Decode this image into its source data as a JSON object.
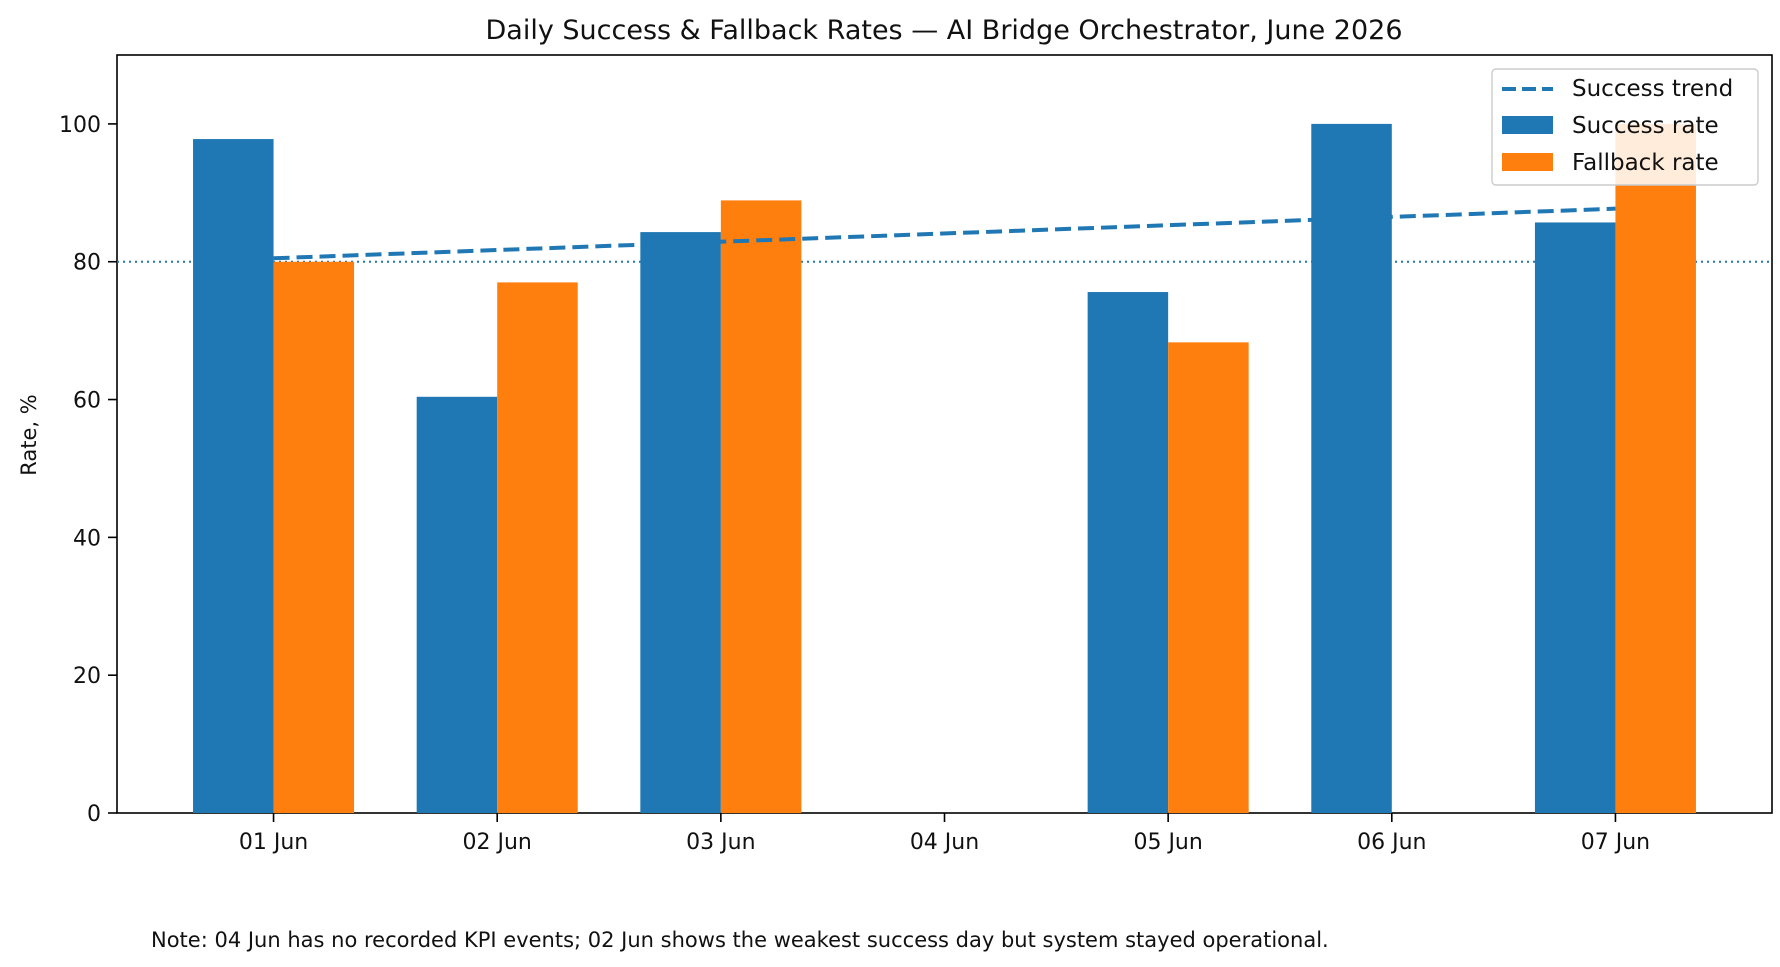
{
  "chart_data": {
    "type": "bar",
    "title": "Daily Success & Fallback Rates — AI Bridge Orchestrator, June 2026",
    "xlabel": "",
    "ylabel": "Rate, %",
    "categories": [
      "01 Jun",
      "02 Jun",
      "03 Jun",
      "04 Jun",
      "05 Jun",
      "06 Jun",
      "07 Jun"
    ],
    "series": [
      {
        "name": "Success rate",
        "color": "#1f77b4",
        "values": [
          97.8,
          60.4,
          84.3,
          null,
          75.6,
          100.0,
          85.7
        ]
      },
      {
        "name": "Fallback rate",
        "color": "#ff7f0e",
        "values": [
          80.0,
          77.0,
          88.9,
          null,
          68.3,
          null,
          100.0
        ]
      }
    ],
    "trend": {
      "name": "Success trend",
      "color": "#1f77b4",
      "style": "dashed",
      "start": 80.5,
      "end": 87.7
    },
    "reference_line": {
      "y": 80,
      "style": "dotted",
      "color": "#1f77b4"
    },
    "ylim": [
      0,
      110
    ],
    "yticks": [
      0,
      20,
      40,
      60,
      80,
      100
    ],
    "grid": false,
    "legend_position": "top-right"
  },
  "note": "Note: 04 Jun has no recorded KPI events; 02 Jun shows the weakest success day but system stayed operational."
}
